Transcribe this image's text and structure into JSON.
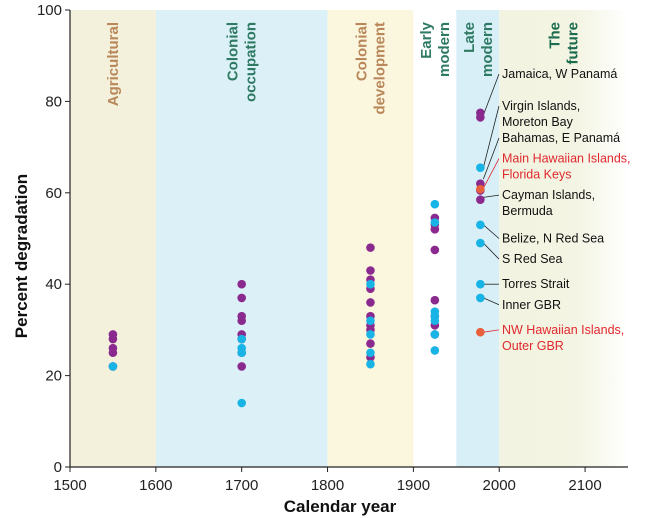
{
  "chart_data": {
    "type": "scatter",
    "xlabel": "Calendar year",
    "ylabel": "Percent degradation",
    "xlim": [
      1500,
      2150
    ],
    "ylim": [
      0,
      100
    ],
    "xticks": [
      1500,
      1600,
      1700,
      1800,
      1900,
      2000,
      2100
    ],
    "yticks": [
      0,
      20,
      40,
      60,
      80,
      100
    ],
    "grid": false,
    "colors": {
      "purple": "#8b2a8e",
      "cyan": "#18b4e6",
      "orange": "#e8603c",
      "red_text": "#e0282d",
      "tan_text": "#b9875a",
      "teal_text": "#2e7a63",
      "green_text": "#1b6c4e"
    },
    "periods": [
      {
        "lines": [
          "Agricultural"
        ],
        "start": 1500,
        "end": 1600,
        "fill": "#f3f1dc",
        "text_color": "#b9875a"
      },
      {
        "lines": [
          "Colonial",
          "occupation"
        ],
        "start": 1600,
        "end": 1800,
        "fill": "#dcf0f8",
        "text_color": "#2e7a63"
      },
      {
        "lines": [
          "Colonial",
          "development"
        ],
        "start": 1800,
        "end": 1900,
        "fill": "#fbf7df",
        "text_color": "#b9875a"
      },
      {
        "lines": [
          "Early",
          "modern"
        ],
        "start": 1900,
        "end": 1950,
        "fill": "#ffffff",
        "text_color": "#2e7a63"
      },
      {
        "lines": [
          "Late",
          "modern"
        ],
        "start": 1950,
        "end": 2000,
        "fill": "#d8eff8",
        "text_color": "#2e7a63"
      },
      {
        "lines": [
          "The",
          "future"
        ],
        "start": 2000,
        "end": 2150,
        "fill": "#f2f3e0",
        "text_color": "#1b6c4e",
        "fade": true
      }
    ],
    "series": [
      {
        "color_key": "purple",
        "points": [
          [
            1550,
            29
          ],
          [
            1550,
            28
          ],
          [
            1550,
            26
          ],
          [
            1550,
            25
          ],
          [
            1550,
            22
          ],
          [
            1700,
            40
          ],
          [
            1700,
            37
          ],
          [
            1700,
            33
          ],
          [
            1700,
            32
          ],
          [
            1700,
            29
          ],
          [
            1700,
            28
          ],
          [
            1700,
            25
          ],
          [
            1700,
            22
          ],
          [
            1850,
            48
          ],
          [
            1850,
            43
          ],
          [
            1850,
            41
          ],
          [
            1850,
            39
          ],
          [
            1850,
            36
          ],
          [
            1850,
            33
          ],
          [
            1850,
            31
          ],
          [
            1850,
            30
          ],
          [
            1850,
            27
          ],
          [
            1850,
            24
          ],
          [
            1925,
            54.5
          ],
          [
            1925,
            53
          ],
          [
            1925,
            52
          ],
          [
            1925,
            47.5
          ],
          [
            1925,
            36.5
          ],
          [
            1925,
            33
          ],
          [
            1925,
            31
          ],
          [
            1925,
            29
          ],
          [
            1978,
            77.5
          ],
          [
            1978,
            76.5
          ],
          [
            1978,
            62
          ],
          [
            1978,
            60.5
          ],
          [
            1978,
            58.5
          ]
        ]
      },
      {
        "color_key": "cyan",
        "points": [
          [
            1550,
            22
          ],
          [
            1700,
            28
          ],
          [
            1700,
            26
          ],
          [
            1700,
            25
          ],
          [
            1700,
            14
          ],
          [
            1850,
            40
          ],
          [
            1850,
            32
          ],
          [
            1850,
            29
          ],
          [
            1850,
            25
          ],
          [
            1850,
            22.5
          ],
          [
            1925,
            57.5
          ],
          [
            1925,
            53.5
          ],
          [
            1925,
            34
          ],
          [
            1925,
            33
          ],
          [
            1925,
            32
          ],
          [
            1925,
            29
          ],
          [
            1925,
            25.5
          ],
          [
            1978,
            65.5
          ],
          [
            1978,
            53
          ],
          [
            1978,
            49
          ],
          [
            1978,
            40
          ],
          [
            1978,
            37
          ]
        ]
      },
      {
        "color_key": "orange",
        "points": [
          [
            1978,
            60.8
          ],
          [
            1978,
            29.5
          ]
        ]
      }
    ],
    "annotations": [
      {
        "lines": [
          "Jamaica, W Panamá"
        ],
        "target": [
          1978,
          77
        ],
        "label_y": 86,
        "color_key": null
      },
      {
        "lines": [
          "Virgin Islands,",
          "Moreton Bay"
        ],
        "target": [
          1978,
          65.5
        ],
        "label_y": 79,
        "color_key": null
      },
      {
        "lines": [
          "Bahamas, E Panamá"
        ],
        "target": [
          1978,
          63
        ],
        "label_y": 72,
        "color_key": null
      },
      {
        "lines": [
          "Main Hawaiian Islands,",
          "Florida Keys"
        ],
        "target": [
          1978,
          61
        ],
        "label_y": 67.5,
        "color_key": "red_text"
      },
      {
        "lines": [
          "Cayman Islands,",
          "Bermuda"
        ],
        "target": [
          1978,
          59
        ],
        "label_y": 59.5,
        "color_key": null
      },
      {
        "lines": [
          "Belize, N Red Sea"
        ],
        "target": [
          1978,
          53
        ],
        "label_y": 50,
        "color_key": null
      },
      {
        "lines": [
          "S Red Sea"
        ],
        "target": [
          1978,
          49
        ],
        "label_y": 45.5,
        "color_key": null
      },
      {
        "lines": [
          "Torres Strait"
        ],
        "target": [
          1978,
          40
        ],
        "label_y": 40,
        "color_key": null
      },
      {
        "lines": [
          "Inner GBR"
        ],
        "target": [
          1978,
          37
        ],
        "label_y": 35.5,
        "color_key": null
      },
      {
        "lines": [
          "NW Hawaiian Islands,",
          "Outer GBR"
        ],
        "target": [
          1978,
          29.5
        ],
        "label_y": 30,
        "color_key": "red_text"
      }
    ]
  }
}
